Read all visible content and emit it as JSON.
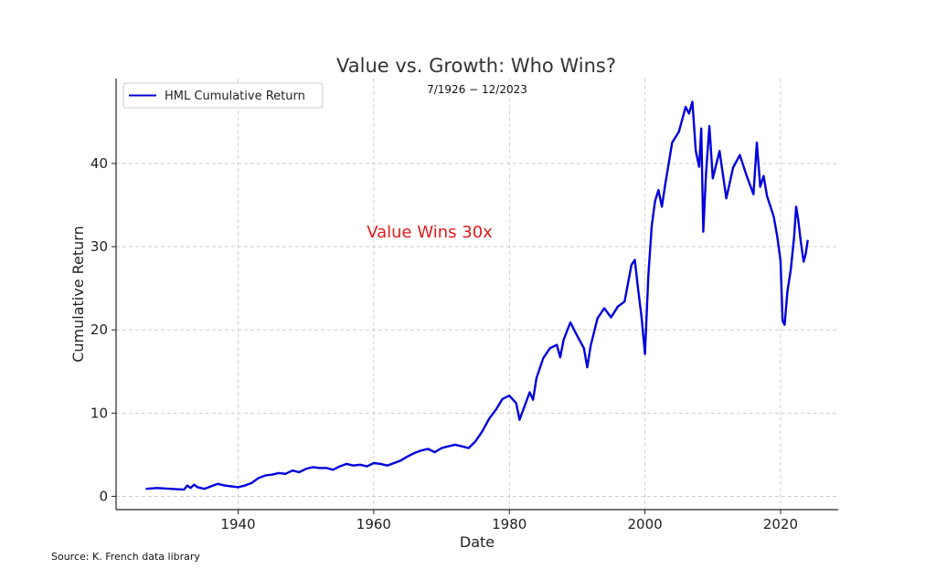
{
  "chart_data": {
    "type": "line",
    "title": "Value vs. Growth: Who Wins?",
    "subtitle": "7/1926 − 12/2023",
    "xlabel": "Date",
    "ylabel": "Cumulative Return",
    "xlim": [
      1922.0,
      2028.5
    ],
    "ylim": [
      -1.6,
      50.2
    ],
    "xticks": [
      1940,
      1960,
      1980,
      2000,
      2020
    ],
    "yticks": [
      0,
      10,
      20,
      30,
      40
    ],
    "grid": true,
    "legend_position": "top-left",
    "annotation": "Value Wins 30x",
    "annotation_color": "#e31a1c",
    "series": [
      {
        "name": "HML Cumulative Return",
        "color": "#0000dd",
        "x": [
          1926.5,
          1928,
          1930,
          1932,
          1932.5,
          1933,
          1933.5,
          1934,
          1935,
          1936,
          1937,
          1938,
          1939,
          1940,
          1941,
          1942,
          1943,
          1944,
          1945,
          1946,
          1947,
          1948,
          1949,
          1950,
          1951,
          1952,
          1953,
          1954,
          1955,
          1956,
          1957,
          1958,
          1959,
          1960,
          1961,
          1962,
          1963,
          1964,
          1965,
          1966,
          1967,
          1968,
          1969,
          1970,
          1971,
          1972,
          1973,
          1974,
          1975,
          1976,
          1977,
          1978,
          1979,
          1980,
          1981,
          1981.5,
          1982,
          1983,
          1983.5,
          1984,
          1985,
          1986,
          1987,
          1987.5,
          1988,
          1989,
          1990,
          1991,
          1991.5,
          1992,
          1993,
          1994,
          1995,
          1996,
          1997,
          1998,
          1998.5,
          1999,
          1999.5,
          2000,
          2000.5,
          2001,
          2001.5,
          2002,
          2002.5,
          2003,
          2003.5,
          2004,
          2005,
          2006,
          2006.5,
          2007,
          2007.5,
          2008,
          2008.3,
          2008.6,
          2009,
          2009.2,
          2009.5,
          2010,
          2011,
          2012,
          2013,
          2014,
          2015,
          2016,
          2016.5,
          2017,
          2017.5,
          2018,
          2019,
          2019.5,
          2020,
          2020.3,
          2020.6,
          2021,
          2021.5,
          2022,
          2022.3,
          2022.6,
          2023,
          2023.4,
          2023.7,
          2024
        ],
        "y": [
          0.9,
          1.0,
          0.9,
          0.8,
          1.3,
          1.0,
          1.4,
          1.1,
          0.9,
          1.2,
          1.5,
          1.3,
          1.2,
          1.1,
          1.3,
          1.6,
          2.2,
          2.5,
          2.6,
          2.8,
          2.7,
          3.1,
          2.9,
          3.3,
          3.5,
          3.4,
          3.4,
          3.2,
          3.6,
          3.9,
          3.7,
          3.8,
          3.6,
          4.0,
          3.9,
          3.7,
          4.0,
          4.3,
          4.8,
          5.2,
          5.5,
          5.7,
          5.3,
          5.8,
          6.0,
          6.2,
          6.0,
          5.8,
          6.6,
          7.8,
          9.3,
          10.4,
          11.7,
          12.1,
          11.2,
          9.2,
          10.3,
          12.5,
          11.6,
          14.2,
          16.6,
          17.8,
          18.2,
          16.7,
          18.8,
          20.9,
          19.3,
          17.8,
          15.5,
          18.1,
          21.4,
          22.6,
          21.5,
          22.8,
          23.4,
          27.8,
          28.4,
          24.8,
          21.5,
          17.1,
          26.5,
          32.5,
          35.5,
          36.8,
          34.8,
          37.5,
          40.0,
          42.5,
          43.8,
          46.8,
          46.0,
          47.4,
          41.5,
          39.6,
          44.2,
          31.8,
          38.8,
          41.0,
          44.5,
          38.2,
          41.5,
          35.8,
          39.5,
          41.0,
          38.5,
          36.3,
          42.5,
          37.2,
          38.5,
          36.1,
          33.6,
          31.3,
          28.3,
          21.1,
          20.6,
          24.6,
          27.2,
          31.2,
          34.8,
          33.3,
          30.5,
          28.2,
          29.1,
          30.7
        ]
      }
    ]
  },
  "source_note": "Source: K. French data library"
}
